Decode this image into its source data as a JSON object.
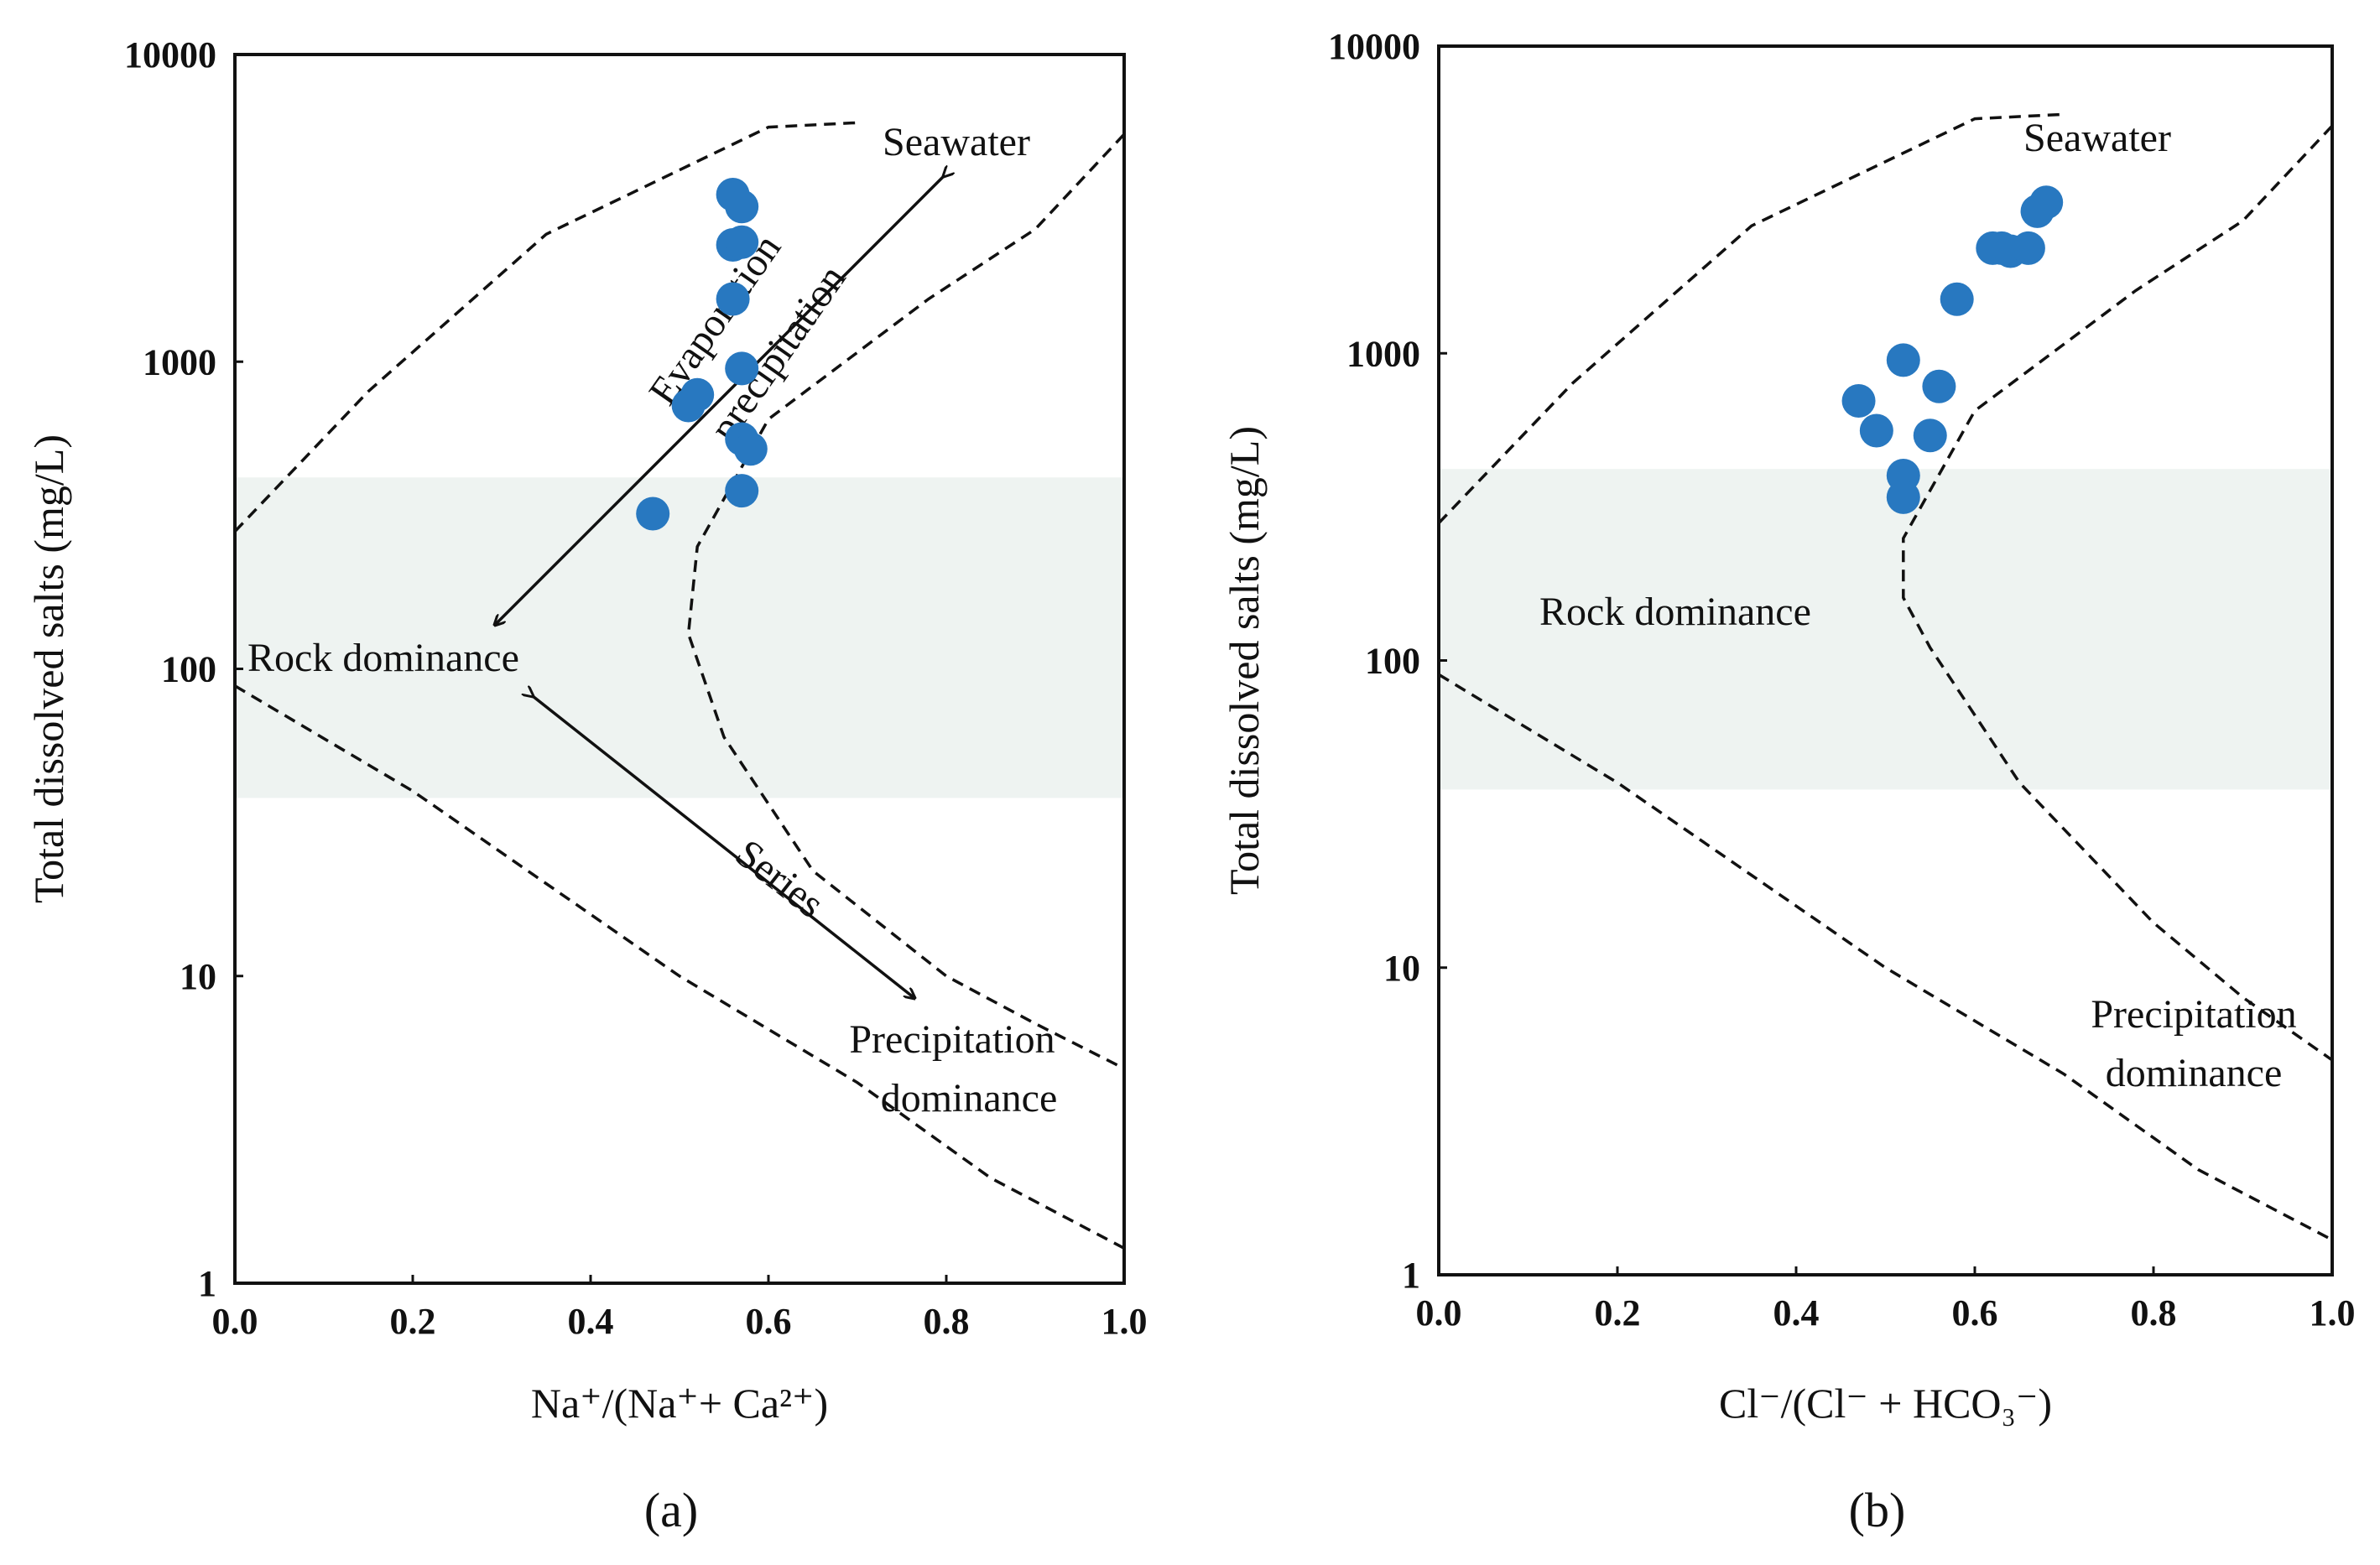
{
  "chart_data": [
    {
      "type": "scatter",
      "panel_label": "(a)",
      "xlabel": "Na⁺/(Na⁺+ Ca²⁺)",
      "ylabel": "Total dissolved salts (mg/L)",
      "xlim": [
        0.0,
        1.0
      ],
      "ylim": [
        1,
        10000
      ],
      "yscale": "log",
      "xticks": [
        "0.0",
        "0.2",
        "0.4",
        "0.6",
        "0.8",
        "1.0"
      ],
      "yticks": [
        "1",
        "10",
        "100",
        "1000",
        "10000"
      ],
      "grid": false,
      "point_color": "#2878c0",
      "shaded_band_y": [
        38,
        420
      ],
      "annotations": [
        "Seawater",
        "Evaporation",
        "precipitation",
        "Rock dominance",
        "Series",
        "Precipitation",
        "dominance"
      ],
      "points": [
        {
          "x": 0.47,
          "y": 320
        },
        {
          "x": 0.51,
          "y": 720
        },
        {
          "x": 0.52,
          "y": 780
        },
        {
          "x": 0.56,
          "y": 3500
        },
        {
          "x": 0.57,
          "y": 3200
        },
        {
          "x": 0.56,
          "y": 2400
        },
        {
          "x": 0.57,
          "y": 2450
        },
        {
          "x": 0.56,
          "y": 1600
        },
        {
          "x": 0.57,
          "y": 950
        },
        {
          "x": 0.57,
          "y": 560
        },
        {
          "x": 0.58,
          "y": 520
        },
        {
          "x": 0.57,
          "y": 380
        }
      ],
      "boundary_upper": [
        [
          0.0,
          280
        ],
        [
          0.15,
          800
        ],
        [
          0.35,
          2600
        ],
        [
          0.6,
          5800
        ],
        [
          0.7,
          6000
        ]
      ],
      "boundary_lower": [
        [
          0.0,
          88
        ],
        [
          0.2,
          40
        ],
        [
          0.35,
          20
        ],
        [
          0.5,
          10
        ],
        [
          0.7,
          4.5
        ],
        [
          0.85,
          2.2
        ],
        [
          1.0,
          1.3
        ]
      ],
      "boundary_right": [
        [
          1.0,
          5500
        ],
        [
          0.9,
          2700
        ],
        [
          0.78,
          1600
        ],
        [
          0.6,
          650
        ],
        [
          0.52,
          250
        ],
        [
          0.51,
          130
        ],
        [
          0.55,
          60
        ],
        [
          0.65,
          22
        ],
        [
          0.8,
          10
        ],
        [
          0.9,
          7
        ],
        [
          1.0,
          5
        ]
      ]
    },
    {
      "type": "scatter",
      "panel_label": "(b)",
      "xlabel": "Cl⁻/(Cl⁻ + HCO₃⁻)",
      "ylabel": "Total dissolved salts (mg/L)",
      "xlim": [
        0.0,
        1.0
      ],
      "ylim": [
        1,
        10000
      ],
      "yscale": "log",
      "xticks": [
        "0.0",
        "0.2",
        "0.4",
        "0.6",
        "0.8",
        "1.0"
      ],
      "yticks": [
        "1",
        "10",
        "100",
        "1000",
        "10000"
      ],
      "grid": false,
      "point_color": "#2878c0",
      "shaded_band_y": [
        38,
        420
      ],
      "annotations": [
        "Seawater",
        "Rock dominance",
        "Precipitation",
        "dominance"
      ],
      "points": [
        {
          "x": 0.47,
          "y": 700
        },
        {
          "x": 0.49,
          "y": 560
        },
        {
          "x": 0.52,
          "y": 950
        },
        {
          "x": 0.52,
          "y": 400
        },
        {
          "x": 0.52,
          "y": 340
        },
        {
          "x": 0.55,
          "y": 540
        },
        {
          "x": 0.56,
          "y": 780
        },
        {
          "x": 0.58,
          "y": 1500
        },
        {
          "x": 0.62,
          "y": 2200
        },
        {
          "x": 0.63,
          "y": 2200
        },
        {
          "x": 0.64,
          "y": 2150
        },
        {
          "x": 0.66,
          "y": 2200
        },
        {
          "x": 0.67,
          "y": 2900
        },
        {
          "x": 0.68,
          "y": 3100
        }
      ],
      "boundary_upper": [
        [
          0.0,
          280
        ],
        [
          0.15,
          800
        ],
        [
          0.35,
          2600
        ],
        [
          0.6,
          5800
        ],
        [
          0.7,
          6000
        ]
      ],
      "boundary_lower": [
        [
          0.0,
          90
        ],
        [
          0.2,
          40
        ],
        [
          0.35,
          20
        ],
        [
          0.5,
          10
        ],
        [
          0.7,
          4.5
        ],
        [
          0.85,
          2.2
        ],
        [
          1.0,
          1.3
        ]
      ],
      "boundary_right": [
        [
          1.0,
          5500
        ],
        [
          0.9,
          2700
        ],
        [
          0.78,
          1600
        ],
        [
          0.6,
          650
        ],
        [
          0.52,
          250
        ],
        [
          0.52,
          160
        ],
        [
          0.55,
          110
        ],
        [
          0.65,
          40
        ],
        [
          0.8,
          14
        ],
        [
          0.9,
          8
        ],
        [
          1.0,
          5
        ]
      ]
    }
  ]
}
